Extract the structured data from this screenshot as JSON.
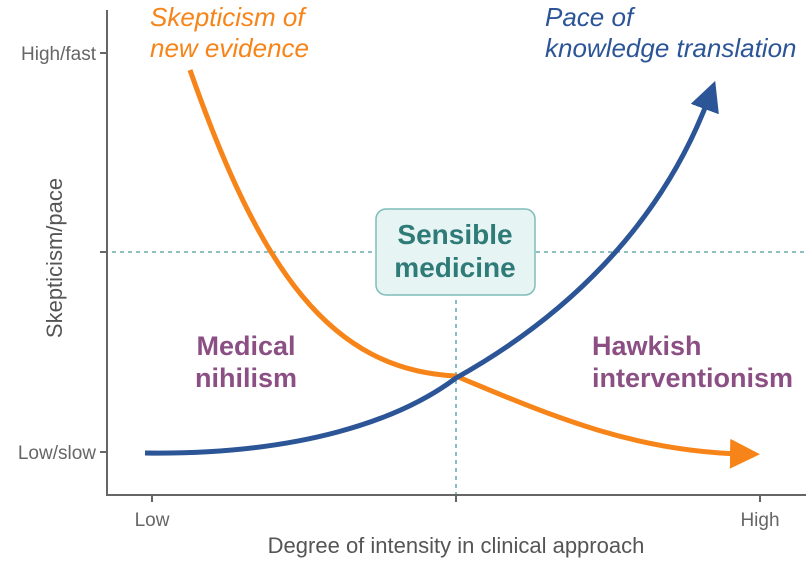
{
  "y_axis": {
    "label": "Skepticism/pace",
    "ticks": [
      "High/fast",
      "",
      "Low/slow"
    ]
  },
  "x_axis": {
    "label": "Degree of intensity in clinical approach",
    "ticks": [
      "Low",
      "",
      "High"
    ]
  },
  "curves": [
    {
      "label_lines": [
        "Skepticism of",
        "new evidence"
      ],
      "color": "#f78419",
      "trend": "decreasing"
    },
    {
      "label_lines": [
        "Pace of",
        "knowledge translation"
      ],
      "color": "#2c5597",
      "trend": "increasing"
    }
  ],
  "regions": {
    "left": [
      "Medical",
      "nihilism"
    ],
    "center": [
      "Sensible",
      "medicine"
    ],
    "right": [
      "Hawkish",
      "interventionism"
    ]
  },
  "colors": {
    "region_text": "#8b4f84",
    "center_text": "#2e7b78",
    "center_box_fill": "#e6f4f3",
    "center_box_border": "#7fbdb9",
    "guide_lines": "#4a9a97"
  }
}
